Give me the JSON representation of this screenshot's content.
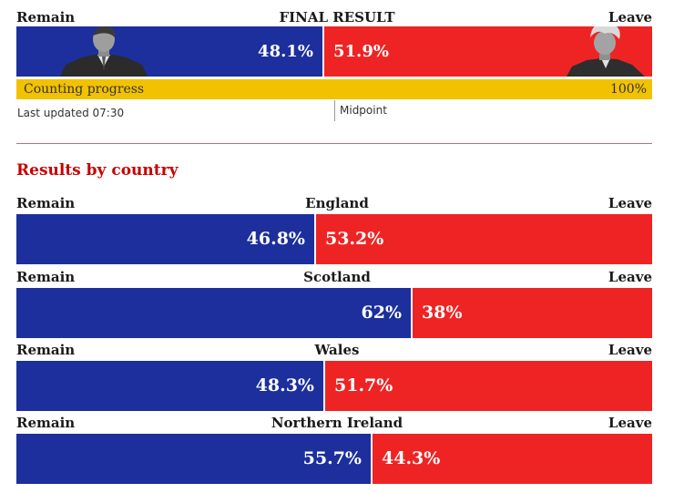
{
  "final": {
    "remain_label": "Remain",
    "title": "FINAL RESULT",
    "leave_label": "Leave",
    "remain_text": "48.1%",
    "leave_text": "51.9%",
    "remain_pct": 48.1,
    "leave_pct": 51.9,
    "remain_photo": "politician-photo-remain",
    "leave_photo": "politician-photo-leave"
  },
  "progress": {
    "label": "Counting progress",
    "value_text": "100%",
    "value": 100,
    "updated": "Last updated 07:30",
    "midpoint": "Midpoint"
  },
  "section_title": "Results by country",
  "countries": [
    {
      "name": "England",
      "remain_label": "Remain",
      "leave_label": "Leave",
      "remain_text": "46.8%",
      "leave_text": "53.2%",
      "remain": 46.8,
      "leave": 53.2
    },
    {
      "name": "Scotland",
      "remain_label": "Remain",
      "leave_label": "Leave",
      "remain_text": "62%",
      "leave_text": "38%",
      "remain": 62,
      "leave": 38
    },
    {
      "name": "Wales",
      "remain_label": "Remain",
      "leave_label": "Leave",
      "remain_text": "48.3%",
      "leave_text": "51.7%",
      "remain": 48.3,
      "leave": 51.7
    },
    {
      "name": "Northern Ireland",
      "remain_label": "Remain",
      "leave_label": "Leave",
      "remain_text": "55.7%",
      "leave_text": "44.3%",
      "remain": 55.7,
      "leave": 44.3
    }
  ],
  "colors": {
    "remain": "#1c2f9c",
    "leave": "#ee2424",
    "progress": "#f2c200",
    "accent": "#c70000"
  },
  "chart_data": {
    "type": "bar",
    "title": "FINAL RESULT",
    "categories": [
      "England",
      "Scotland",
      "Wales",
      "Northern Ireland"
    ],
    "series": [
      {
        "name": "Remain",
        "values": [
          46.8,
          62,
          48.3,
          55.7
        ]
      },
      {
        "name": "Leave",
        "values": [
          53.2,
          38,
          51.7,
          44.3
        ]
      }
    ],
    "overall": {
      "Remain": 48.1,
      "Leave": 51.9
    },
    "ylim": [
      0,
      100
    ]
  }
}
